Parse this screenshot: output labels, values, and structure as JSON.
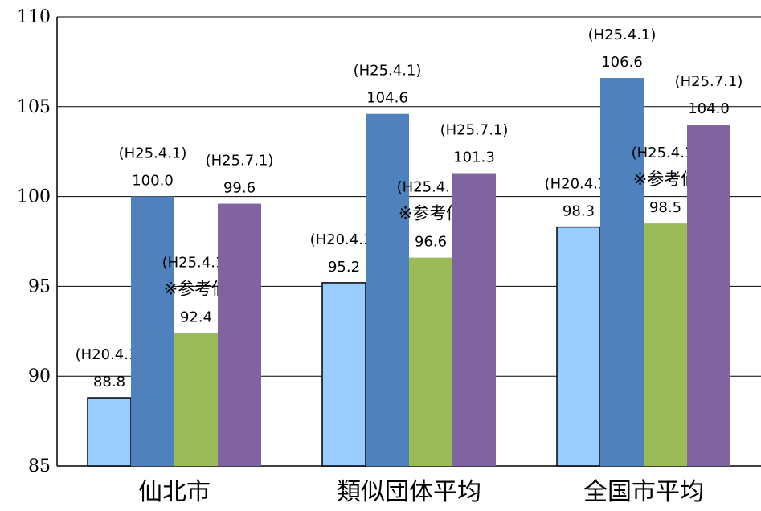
{
  "chart_data": {
    "type": "bar",
    "categories": [
      "仙北市",
      "類似団体平均",
      "全国市平均"
    ],
    "ylim": [
      85,
      110
    ],
    "yticks": [
      85,
      90,
      95,
      100,
      105,
      110
    ],
    "grid": true,
    "legend": "none",
    "series": [
      {
        "color": "#99ccff",
        "stroke": "#000000",
        "values": [
          88.8,
          95.2,
          98.3
        ],
        "labels": [
          [
            "(H20.4.1)",
            "88.8"
          ],
          [
            "(H20.4.1)",
            "95.2"
          ],
          [
            "(H20.4.1)",
            "98.3"
          ]
        ]
      },
      {
        "color": "#4f81bd",
        "stroke": "none",
        "values": [
          100.0,
          104.6,
          106.6
        ],
        "labels": [
          [
            "(H25.4.1)",
            "100.0"
          ],
          [
            "(H25.4.1)",
            "104.6"
          ],
          [
            "(H25.4.1)",
            "106.6"
          ]
        ]
      },
      {
        "color": "#9bbb59",
        "stroke": "none",
        "values": [
          92.4,
          96.6,
          98.5
        ],
        "labels": [
          [
            "(H25.4.1)",
            "※参考値",
            "92.4"
          ],
          [
            "(H25.4.1)",
            "※参考値",
            "96.6"
          ],
          [
            "(H25.4.1)",
            "※参考値",
            "98.5"
          ]
        ]
      },
      {
        "color": "#8064a2",
        "stroke": "none",
        "values": [
          99.6,
          101.3,
          104.0
        ],
        "labels": [
          [
            "(H25.7.1)",
            "99.6"
          ],
          [
            "(H25.7.1)",
            "101.3"
          ],
          [
            "(H25.7.1)",
            "104.0"
          ]
        ]
      }
    ]
  }
}
